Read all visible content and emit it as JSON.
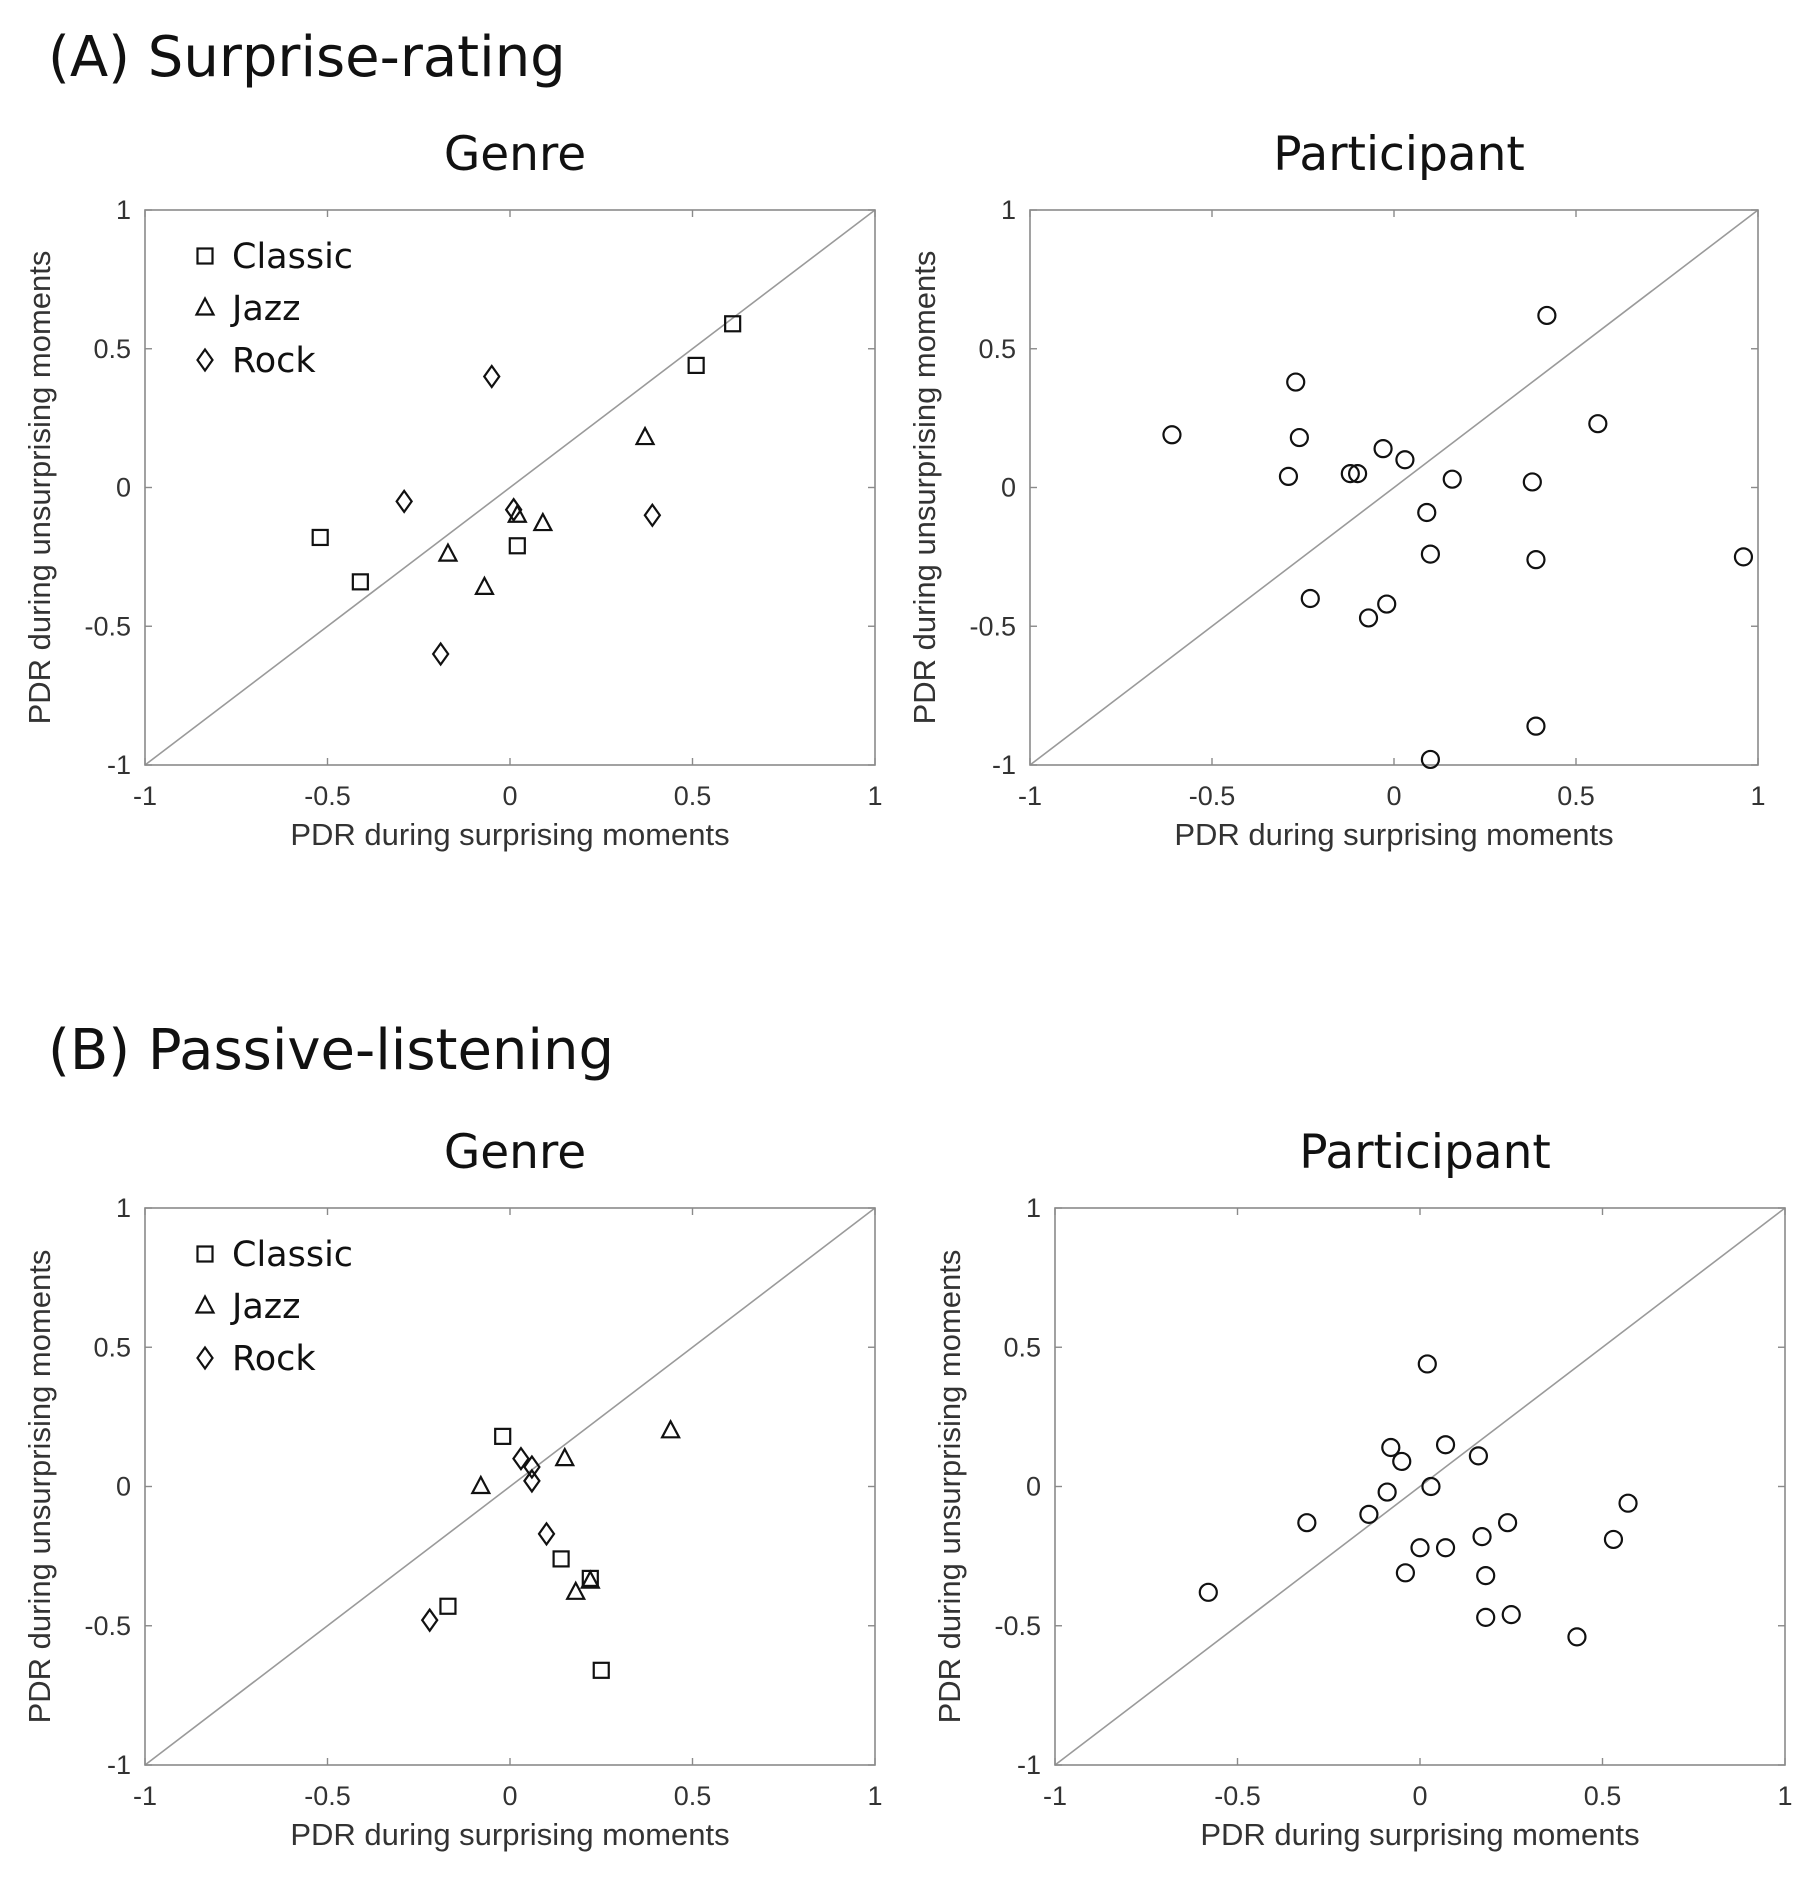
{
  "sections": [
    {
      "label": "(A) Surprise-rating"
    },
    {
      "label": "(B) Passive-listening"
    }
  ],
  "axis": {
    "xlabel": "PDR during surprising moments",
    "ylabel": "PDR during unsurprising moments",
    "ticks": [
      "-1",
      "-0.5",
      "0",
      "0.5",
      "1"
    ]
  },
  "legend": {
    "classic": "Classic",
    "jazz": "Jazz",
    "rock": "Rock"
  },
  "chart_data": [
    {
      "type": "scatter",
      "title": "Genre",
      "section": "(A) Surprise-rating",
      "xlabel": "PDR during surprising moments",
      "ylabel": "PDR during unsurprising moments",
      "xlim": [
        -1,
        1
      ],
      "ylim": [
        -1,
        1
      ],
      "reference_line": "y = x",
      "legend_position": "top-left",
      "series": [
        {
          "name": "Classic",
          "marker": "square",
          "points": [
            [
              -0.52,
              -0.18
            ],
            [
              -0.41,
              -0.34
            ],
            [
              0.02,
              -0.21
            ],
            [
              0.51,
              0.44
            ],
            [
              0.61,
              0.59
            ]
          ]
        },
        {
          "name": "Jazz",
          "marker": "triangle",
          "points": [
            [
              -0.17,
              -0.24
            ],
            [
              -0.07,
              -0.36
            ],
            [
              0.02,
              -0.1
            ],
            [
              0.09,
              -0.13
            ],
            [
              0.37,
              0.18
            ]
          ]
        },
        {
          "name": "Rock",
          "marker": "diamond",
          "points": [
            [
              -0.29,
              -0.05
            ],
            [
              -0.19,
              -0.6
            ],
            [
              -0.05,
              0.4
            ],
            [
              0.01,
              -0.08
            ],
            [
              0.39,
              -0.1
            ]
          ]
        }
      ]
    },
    {
      "type": "scatter",
      "title": "Participant",
      "section": "(A) Surprise-rating",
      "xlabel": "PDR during surprising moments",
      "ylabel": "PDR during unsurprising moments",
      "xlim": [
        -1,
        1
      ],
      "ylim": [
        -1,
        1
      ],
      "reference_line": "y = x",
      "series": [
        {
          "name": "Participants",
          "marker": "circle",
          "points": [
            [
              -0.61,
              0.19
            ],
            [
              -0.29,
              0.04
            ],
            [
              -0.27,
              0.38
            ],
            [
              -0.26,
              0.18
            ],
            [
              -0.23,
              -0.4
            ],
            [
              -0.12,
              0.05
            ],
            [
              -0.1,
              0.05
            ],
            [
              -0.07,
              -0.47
            ],
            [
              -0.03,
              0.14
            ],
            [
              -0.02,
              -0.42
            ],
            [
              0.03,
              0.1
            ],
            [
              0.09,
              -0.09
            ],
            [
              0.1,
              -0.24
            ],
            [
              0.1,
              -0.98
            ],
            [
              0.16,
              0.03
            ],
            [
              0.38,
              0.02
            ],
            [
              0.39,
              -0.26
            ],
            [
              0.39,
              -0.86
            ],
            [
              0.42,
              0.62
            ],
            [
              0.56,
              0.23
            ],
            [
              0.96,
              -0.25
            ]
          ]
        }
      ]
    },
    {
      "type": "scatter",
      "title": "Genre",
      "section": "(B) Passive-listening",
      "xlabel": "PDR during surprising moments",
      "ylabel": "PDR during unsurprising moments",
      "xlim": [
        -1,
        1
      ],
      "ylim": [
        -1,
        1
      ],
      "reference_line": "y = x",
      "legend_position": "top-left",
      "series": [
        {
          "name": "Classic",
          "marker": "square",
          "points": [
            [
              -0.17,
              -0.43
            ],
            [
              -0.02,
              0.18
            ],
            [
              0.14,
              -0.26
            ],
            [
              0.22,
              -0.33
            ],
            [
              0.25,
              -0.66
            ]
          ]
        },
        {
          "name": "Jazz",
          "marker": "triangle",
          "points": [
            [
              -0.08,
              0.0
            ],
            [
              0.15,
              0.1
            ],
            [
              0.18,
              -0.38
            ],
            [
              0.22,
              -0.34
            ],
            [
              0.44,
              0.2
            ]
          ]
        },
        {
          "name": "Rock",
          "marker": "diamond",
          "points": [
            [
              -0.22,
              -0.48
            ],
            [
              0.03,
              0.1
            ],
            [
              0.06,
              0.07
            ],
            [
              0.06,
              0.02
            ],
            [
              0.1,
              -0.17
            ]
          ]
        }
      ]
    },
    {
      "type": "scatter",
      "title": "Participant",
      "section": "(B) Passive-listening",
      "xlabel": "PDR during surprising moments",
      "ylabel": "PDR during unsurprising moments",
      "xlim": [
        -1,
        1
      ],
      "ylim": [
        -1,
        1
      ],
      "reference_line": "y = x",
      "series": [
        {
          "name": "Participants",
          "marker": "circle",
          "points": [
            [
              -0.58,
              -0.38
            ],
            [
              -0.31,
              -0.13
            ],
            [
              -0.14,
              -0.1
            ],
            [
              -0.09,
              -0.02
            ],
            [
              -0.08,
              0.14
            ],
            [
              -0.05,
              0.09
            ],
            [
              -0.04,
              -0.31
            ],
            [
              0.0,
              -0.22
            ],
            [
              0.02,
              0.44
            ],
            [
              0.03,
              0.0
            ],
            [
              0.07,
              -0.22
            ],
            [
              0.07,
              0.15
            ],
            [
              0.16,
              0.11
            ],
            [
              0.17,
              -0.18
            ],
            [
              0.18,
              -0.32
            ],
            [
              0.18,
              -0.47
            ],
            [
              0.24,
              -0.13
            ],
            [
              0.25,
              -0.46
            ],
            [
              0.43,
              -0.54
            ],
            [
              0.53,
              -0.19
            ],
            [
              0.57,
              -0.06
            ]
          ]
        }
      ]
    }
  ]
}
